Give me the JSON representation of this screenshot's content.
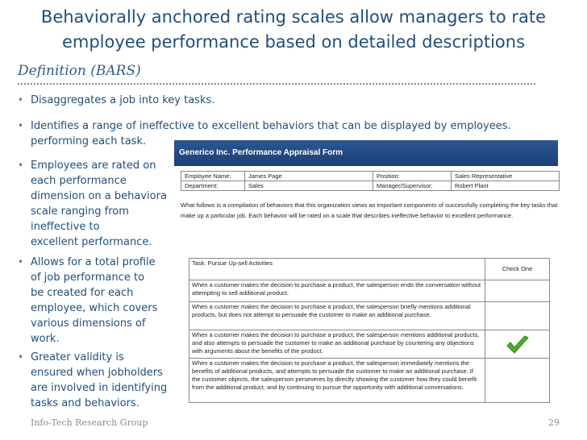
{
  "title": "Behaviorally anchored rating scales allow managers to rate employee performance based on detailed descriptions",
  "subtitle": "Definition (BARS)",
  "bullets": [
    "Disaggregates a job into key tasks.",
    "Identifies a range of ineffective to excellent behaviors that can be displayed by employees.\nperforming each task.",
    "Employees are rated on\neach performance\ndimension on a behavioral\nscale ranging from\nineffective to\nexcellent performance.",
    "Allows for a total profile\nof job performance to\nbe created for each\nemployee, which covers\nvarious dimensions of\nwork.",
    "Greater validity is\nensured when jobholders\nare involved in identifying\ntasks and behaviors."
  ],
  "bullet_symbol": "•",
  "form": {
    "header": "Generico Inc. Performance Appraisal Form",
    "employee_name_label": "Employee Name:",
    "employee_name": "James Page",
    "position_label": "Position:",
    "position": "Sales Representative",
    "department_label": "Department:",
    "department": "Sales",
    "manager_label": "Manager/Supervisor:",
    "manager": "Robert Plant",
    "intro": "What follows is a compilation of behaviors that this organization views as important components of successfully completing the key tasks that make up a particular job. Each behavior will be rated on a scale that describes ineffective behavior to excellent performance.",
    "task_label": "Task: Pursue Up-sell Activities",
    "check_one": "Check One",
    "behaviors": [
      "When a customer makes the decision to purchase a product, the salesperson ends the conversation without attempting to sell additional product.",
      "When a customer makes the decision to purchase a product, the salesperson briefly mentions additional products, but does not attempt to persuade the customer to make an additional purchase.",
      "When a customer makes the decision to purchase a product, the salesperson mentions additional products, and also attempts to persuade the customer to make an additional purchase by countering any objections with arguments about the benefits of the product.",
      "When a customer makes the decision to purchase a product, the salesperson immediately mentions the benefits of additional products, and attempts to persuade the customer to make an additional purchase. If the customer objects, the salesperson perseveres by directly showing the customer how they could benefit from the additional product, and by continuing to pursue the opportunity with additional conversations."
    ],
    "checked_row": 3,
    "check_icon": "checkmark-icon",
    "check_color": "#4caf2a"
  },
  "footer": {
    "left": "Info-Tech Research Group",
    "page_number": "29"
  },
  "colors": {
    "title": "#1f4e79",
    "header_bar": "#2b5792"
  }
}
